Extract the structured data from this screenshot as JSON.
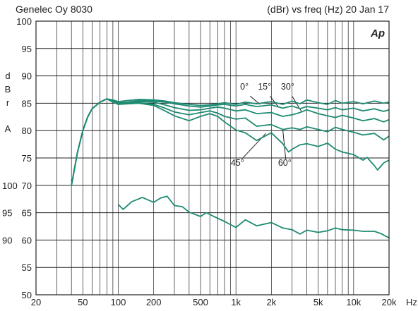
{
  "header": {
    "left": "Genelec Oy 8030",
    "right": "(dBr) vs freq (Hz) 20 Jan 17",
    "logo": "Ap"
  },
  "colors": {
    "curve": "#1e8a72",
    "grid": "#222222",
    "background": "#ffffff"
  },
  "chart_data": {
    "type": "line",
    "title": "",
    "xscale": "log",
    "xlim": [
      20,
      20000
    ],
    "ylim": [
      50,
      100
    ],
    "grid": true,
    "ylabel_letters": [
      "d",
      "B",
      "r",
      "A"
    ],
    "xunit": "Hz",
    "x_tick_labels": [
      {
        "value": 20,
        "label": "20"
      },
      {
        "value": 50,
        "label": "50"
      },
      {
        "value": 100,
        "label": "100"
      },
      {
        "value": 200,
        "label": "200"
      },
      {
        "value": 500,
        "label": "500"
      },
      {
        "value": 1000,
        "label": "1k"
      },
      {
        "value": 2000,
        "label": "2k"
      },
      {
        "value": 5000,
        "label": "5k"
      },
      {
        "value": 10000,
        "label": "10k"
      },
      {
        "value": 20000,
        "label": "20k"
      }
    ],
    "y_ticks": [
      50,
      55,
      60,
      65,
      70,
      75,
      80,
      85,
      90,
      95,
      100
    ],
    "y_tick_labels": [
      "50",
      "55",
      "60",
      "65",
      "70",
      "75",
      "80",
      "85",
      "90",
      "95",
      "100"
    ],
    "secondary_y_tick_labels": [
      {
        "value": 70,
        "label": "100"
      },
      {
        "value": 65,
        "label": "95"
      },
      {
        "value": 60,
        "label": "90"
      }
    ],
    "annotations": [
      {
        "text": "0°",
        "x": 1180,
        "y": 87.5
      },
      {
        "text": "15°",
        "x": 1750,
        "y": 87.5
      },
      {
        "text": "30°",
        "x": 2750,
        "y": 87.5
      },
      {
        "text": "45°",
        "x": 1030,
        "y": 73.6
      },
      {
        "text": "60°",
        "x": 2600,
        "y": 73.6
      }
    ],
    "leaders": [
      {
        "from": [
          1320,
          86.3
        ],
        "to": [
          1600,
          84.8
        ]
      },
      {
        "from": [
          1950,
          86.3
        ],
        "to": [
          2300,
          84.3
        ]
      },
      {
        "from": [
          3000,
          86.3
        ],
        "to": [
          3600,
          83.5
        ]
      },
      {
        "from": [
          1120,
          74.8
        ],
        "to": [
          1800,
          79.5
        ]
      },
      {
        "from": [
          2650,
          74.8
        ],
        "to": [
          2500,
          80.2
        ]
      }
    ],
    "series": [
      {
        "values": [
          [
            40,
            70
          ],
          [
            45,
            76
          ],
          [
            50,
            80
          ],
          [
            55,
            82.5
          ],
          [
            60,
            84
          ],
          [
            70,
            85.2
          ],
          [
            80,
            85.8
          ],
          [
            90,
            85.6
          ],
          [
            100,
            85.3
          ],
          [
            120,
            85.5
          ],
          [
            150,
            85.7
          ],
          [
            200,
            85.6
          ],
          [
            250,
            85.4
          ],
          [
            300,
            85.1
          ],
          [
            400,
            84.8
          ],
          [
            500,
            84.6
          ],
          [
            600,
            84.7
          ],
          [
            700,
            84.9
          ],
          [
            800,
            85.1
          ],
          [
            1000,
            84.8
          ],
          [
            1200,
            85.2
          ],
          [
            1500,
            84.9
          ],
          [
            2000,
            85.3
          ],
          [
            2500,
            84.8
          ],
          [
            3000,
            85.4
          ],
          [
            3500,
            84.9
          ],
          [
            4000,
            85.6
          ],
          [
            5000,
            85.1
          ],
          [
            6000,
            84.8
          ],
          [
            7000,
            85.5
          ],
          [
            8000,
            85
          ],
          [
            10000,
            85.3
          ],
          [
            12000,
            84.9
          ],
          [
            15000,
            85.4
          ],
          [
            18000,
            85
          ],
          [
            20000,
            85.2
          ]
        ]
      },
      {
        "values": [
          [
            40,
            70
          ],
          [
            45,
            76
          ],
          [
            50,
            80
          ],
          [
            55,
            82.5
          ],
          [
            60,
            84
          ],
          [
            70,
            85.2
          ],
          [
            80,
            85.8
          ],
          [
            90,
            85.5
          ],
          [
            100,
            85.1
          ],
          [
            120,
            85.2
          ],
          [
            150,
            85.5
          ],
          [
            200,
            85.4
          ],
          [
            250,
            85.2
          ],
          [
            300,
            84.9
          ],
          [
            400,
            84.5
          ],
          [
            500,
            84.3
          ],
          [
            600,
            84.5
          ],
          [
            700,
            84.7
          ],
          [
            800,
            84.8
          ],
          [
            1000,
            84.5
          ],
          [
            1200,
            84.8
          ],
          [
            1500,
            84.4
          ],
          [
            2000,
            84.7
          ],
          [
            2500,
            84.1
          ],
          [
            3000,
            84.5
          ],
          [
            3500,
            84
          ],
          [
            4000,
            84.4
          ],
          [
            5000,
            84.1
          ],
          [
            6000,
            83.8
          ],
          [
            7000,
            84.2
          ],
          [
            8000,
            83.8
          ],
          [
            10000,
            84.1
          ],
          [
            12000,
            83.6
          ],
          [
            15000,
            84
          ],
          [
            18000,
            83.5
          ],
          [
            20000,
            83.8
          ]
        ]
      },
      {
        "values": [
          [
            40,
            70
          ],
          [
            45,
            76
          ],
          [
            50,
            80
          ],
          [
            55,
            82.5
          ],
          [
            60,
            84
          ],
          [
            70,
            85.2
          ],
          [
            80,
            85.8
          ],
          [
            90,
            85.4
          ],
          [
            100,
            85
          ],
          [
            120,
            85.1
          ],
          [
            150,
            85.3
          ],
          [
            200,
            85.2
          ],
          [
            250,
            84.7
          ],
          [
            300,
            84.2
          ],
          [
            400,
            83.7
          ],
          [
            500,
            83.8
          ],
          [
            600,
            84.1
          ],
          [
            700,
            84.3
          ],
          [
            800,
            84.1
          ],
          [
            1000,
            83.6
          ],
          [
            1200,
            83.8
          ],
          [
            1500,
            83.1
          ],
          [
            2000,
            83.3
          ],
          [
            2500,
            82.6
          ],
          [
            3000,
            82.9
          ],
          [
            3500,
            83.3
          ],
          [
            4000,
            83.8
          ],
          [
            5000,
            83.1
          ],
          [
            6000,
            82.7
          ],
          [
            7000,
            82.4
          ],
          [
            8000,
            82.8
          ],
          [
            10000,
            82.3
          ],
          [
            12000,
            81.8
          ],
          [
            15000,
            82.2
          ],
          [
            18000,
            81.6
          ],
          [
            20000,
            82
          ]
        ]
      },
      {
        "values": [
          [
            40,
            70
          ],
          [
            45,
            76
          ],
          [
            50,
            80
          ],
          [
            55,
            82.5
          ],
          [
            60,
            84
          ],
          [
            70,
            85.2
          ],
          [
            80,
            85.8
          ],
          [
            90,
            85.3
          ],
          [
            100,
            84.9
          ],
          [
            120,
            85
          ],
          [
            150,
            85.1
          ],
          [
            200,
            84.8
          ],
          [
            250,
            84.1
          ],
          [
            300,
            83.4
          ],
          [
            400,
            82.9
          ],
          [
            500,
            83.3
          ],
          [
            600,
            83.6
          ],
          [
            700,
            83.2
          ],
          [
            800,
            82.6
          ],
          [
            1000,
            82.1
          ],
          [
            1200,
            82.3
          ],
          [
            1500,
            80.8
          ],
          [
            2000,
            81.1
          ],
          [
            2500,
            80.2
          ],
          [
            3000,
            80.5
          ],
          [
            3500,
            80.2
          ],
          [
            4000,
            80.7
          ],
          [
            5000,
            80.2
          ],
          [
            6000,
            79.8
          ],
          [
            7000,
            80.6
          ],
          [
            8000,
            80.2
          ],
          [
            10000,
            79.7
          ],
          [
            12000,
            79.2
          ],
          [
            15000,
            79.5
          ],
          [
            18000,
            78.3
          ],
          [
            20000,
            79
          ]
        ]
      },
      {
        "values": [
          [
            40,
            70
          ],
          [
            45,
            76
          ],
          [
            50,
            80
          ],
          [
            55,
            82.5
          ],
          [
            60,
            84
          ],
          [
            70,
            85.2
          ],
          [
            80,
            85.8
          ],
          [
            90,
            85.2
          ],
          [
            100,
            84.8
          ],
          [
            120,
            84.9
          ],
          [
            150,
            85
          ],
          [
            200,
            84.6
          ],
          [
            250,
            83.6
          ],
          [
            300,
            82.7
          ],
          [
            400,
            81.8
          ],
          [
            500,
            82.6
          ],
          [
            600,
            83.1
          ],
          [
            700,
            82.6
          ],
          [
            800,
            81.6
          ],
          [
            1000,
            80.1
          ],
          [
            1200,
            79.6
          ],
          [
            1500,
            78.2
          ],
          [
            2000,
            79.6
          ],
          [
            2500,
            77.6
          ],
          [
            2800,
            76.1
          ],
          [
            3000,
            76.6
          ],
          [
            3500,
            77.4
          ],
          [
            4000,
            77.6
          ],
          [
            5000,
            77.1
          ],
          [
            6000,
            77.7
          ],
          [
            7000,
            76.6
          ],
          [
            8000,
            76.1
          ],
          [
            10000,
            75.6
          ],
          [
            12000,
            74.6
          ],
          [
            13000,
            75.1
          ],
          [
            15000,
            73.6
          ],
          [
            16000,
            72.8
          ],
          [
            18000,
            74.1
          ],
          [
            20000,
            74.6
          ]
        ]
      },
      {
        "values": [
          [
            100,
            66.5
          ],
          [
            110,
            65.6
          ],
          [
            130,
            67
          ],
          [
            160,
            67.8
          ],
          [
            200,
            66.9
          ],
          [
            230,
            67.7
          ],
          [
            260,
            68
          ],
          [
            300,
            66.3
          ],
          [
            350,
            66.1
          ],
          [
            400,
            65.1
          ],
          [
            500,
            64.3
          ],
          [
            560,
            65
          ],
          [
            650,
            64.3
          ],
          [
            800,
            63.4
          ],
          [
            1000,
            62.3
          ],
          [
            1200,
            63.7
          ],
          [
            1500,
            62.6
          ],
          [
            2000,
            63.2
          ],
          [
            2500,
            62.2
          ],
          [
            3000,
            61.9
          ],
          [
            3500,
            61.1
          ],
          [
            4000,
            61.8
          ],
          [
            5000,
            61.4
          ],
          [
            6000,
            61.7
          ],
          [
            7000,
            62.2
          ],
          [
            8000,
            61.9
          ],
          [
            10000,
            61.8
          ],
          [
            12000,
            61.6
          ],
          [
            15000,
            61.6
          ],
          [
            17000,
            61.2
          ],
          [
            20000,
            60.4
          ]
        ]
      }
    ]
  }
}
